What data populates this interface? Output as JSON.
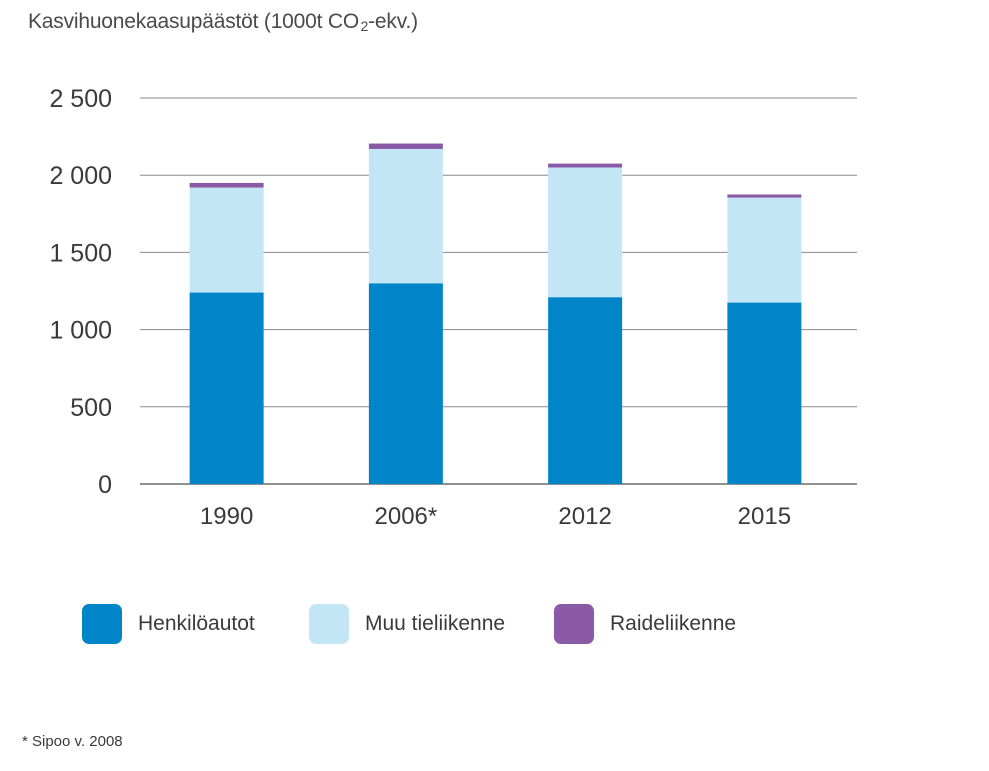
{
  "chart_data": {
    "type": "bar",
    "stacked": true,
    "title_main": "Kasvihuonekaasupäästöt (1000t CO",
    "title_sub": "2",
    "title_end": "-ekv.)",
    "categories": [
      "1990",
      "2006*",
      "2012",
      "2015"
    ],
    "series": [
      {
        "name": "Henkilöautot",
        "color": "#0086c8",
        "values": [
          1240,
          1300,
          1210,
          1175
        ]
      },
      {
        "name": "Muu tieliikenne",
        "color": "#c3e6f7",
        "values": [
          680,
          870,
          840,
          680
        ]
      },
      {
        "name": "Raideliikenne",
        "color": "#8b5aa6",
        "values": [
          30,
          35,
          25,
          20
        ]
      }
    ],
    "ylim": [
      0,
      2500
    ],
    "yticks": [
      0,
      500,
      1000,
      1500,
      2000,
      2500
    ],
    "ytick_labels": [
      "0",
      "500",
      "1 000",
      "1 500",
      "2 000",
      "2 500"
    ],
    "grid": true,
    "legend_position": "bottom"
  },
  "footnote": "* Sipoo v. 2008"
}
